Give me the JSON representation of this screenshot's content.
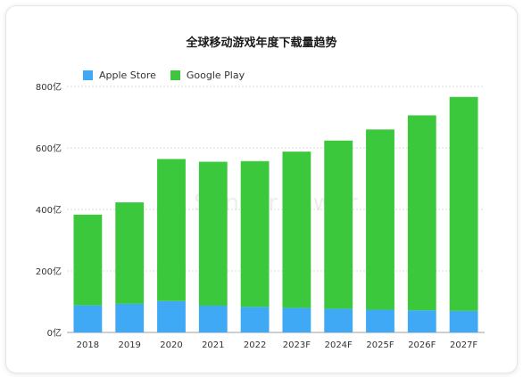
{
  "chart_data": {
    "type": "bar",
    "stacked": true,
    "title": "全球移动游戏年度下载量趋势",
    "categories": [
      "2018",
      "2019",
      "2020",
      "2021",
      "2022",
      "2023F",
      "2024F",
      "2025F",
      "2026F",
      "2027F"
    ],
    "series": [
      {
        "name": "Apple Store",
        "color": "#3fa9f5",
        "values": [
          88,
          93,
          102,
          87,
          83,
          80,
          77,
          74,
          72,
          70
        ]
      },
      {
        "name": "Google Play",
        "color": "#3cc83c",
        "values": [
          295,
          330,
          462,
          468,
          474,
          508,
          547,
          586,
          634,
          696
        ]
      }
    ],
    "ylim": [
      0,
      800
    ],
    "yticks": [
      0,
      200,
      400,
      600,
      800
    ],
    "ytick_labels": [
      "0亿",
      "200亿",
      "400亿",
      "600亿",
      "800亿"
    ],
    "grid": true,
    "legend_position": "top-left"
  },
  "watermark": "Sensor Tower"
}
